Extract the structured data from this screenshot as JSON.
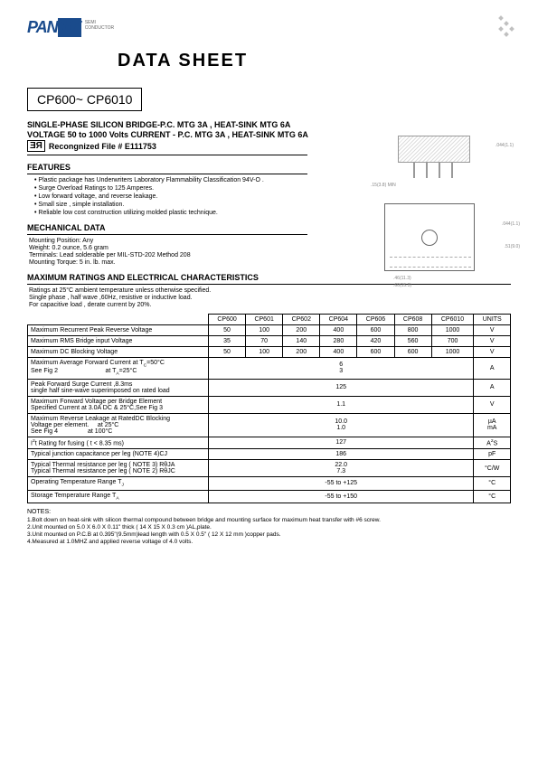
{
  "logo": {
    "brand1": "PAN",
    "brand2": "JiT",
    "sub": "SEMI\nCONDUCTOR"
  },
  "header": {
    "title": "DATA  SHEET",
    "part_range": "CP600~  CP6010"
  },
  "subtitle1": "SINGLE-PHASE SILICON BRIDGE-P.C. MTG 3A , HEAT-SINK MTG  6A",
  "subtitle2": "VOLTAGE  50 to 1000  Volts   CURRENT - P.C. MTG 3A , HEAT-SINK MTG 6A",
  "recognized": "Recongnized File # E111753",
  "features": {
    "title": "FEATURES",
    "items": [
      "Plastic package has Underwriters Laboratory Flammability Classification 94V-O .",
      "Surge Overload Ratings to 125 Amperes.",
      "Low forward voltage, and reverse leakage.",
      "Small size , simple installation.",
      "Reliable low cost construction utilizing molded plastic technique."
    ]
  },
  "mechanical": {
    "title": "MECHANICAL DATA",
    "lines": [
      "Mounting Position: Any",
      "Weight: 0.2 ounce, 5.6 gram",
      "Terminals: Lead solderable per MIL-STD-202 Method 208",
      "Mounting Torque:  5 in. lb. max."
    ]
  },
  "maxratings": {
    "title": "MAXIMUM RATINGS AND ELECTRICAL CHARACTERISTICS",
    "notes": [
      "Ratings at 25°C ambient temperature unless otherwise specified.",
      "Single phase , half wave ,60Hz, resistive or inductive load.",
      "For capacitive load , derate current by 20%."
    ],
    "columns": [
      "CP600",
      "CP601",
      "CP602",
      "CP604",
      "CP606",
      "CP608",
      "CP6010",
      "UNITS"
    ],
    "rows": [
      {
        "label": "Maximum Recurrent Peak Reverse Voltage",
        "cells": [
          "50",
          "100",
          "200",
          "400",
          "600",
          "800",
          "1000",
          "V"
        ]
      },
      {
        "label": "Maximum RMS Bridge input Voltage",
        "cells": [
          "35",
          "70",
          "140",
          "280",
          "420",
          "560",
          "700",
          "V"
        ]
      },
      {
        "label": "Maximum DC Blocking Voltage",
        "cells": [
          "50",
          "100",
          "200",
          "400",
          "600",
          "600",
          "1000",
          "V"
        ]
      },
      {
        "label": "Maximum Average Forward Current  at T<sub>C</sub>=50°C<br>See Fig 2&nbsp;&nbsp;&nbsp;&nbsp;&nbsp;&nbsp;&nbsp;&nbsp;&nbsp;&nbsp;&nbsp;&nbsp;&nbsp;&nbsp;&nbsp;&nbsp;&nbsp;&nbsp;&nbsp;&nbsp;&nbsp;&nbsp;&nbsp;&nbsp;&nbsp;&nbsp;&nbsp;at T<sub>A</sub>=25°C",
        "span": true,
        "val": "6<br>3",
        "unit": "A"
      },
      {
        "label": "Peak Forward Surge Current ,8.3ms<br>single half sine-wave superimposed on rated load",
        "span": true,
        "val": "125",
        "unit": "A"
      },
      {
        "label": "Maximum Forward Voltage  per Bridge Element<br>Specified Current at 3.0A DC & 25°C,See Fig 3",
        "span": true,
        "val": "1.1",
        "unit": "V"
      },
      {
        "label": "Maximum Reverse Leakage at RatedDC Blocking<br>Voltage per element.&nbsp;&nbsp;&nbsp;&nbsp;&nbsp;at  25°C<br>See Fig 4&nbsp;&nbsp;&nbsp;&nbsp;&nbsp;&nbsp;&nbsp;&nbsp;&nbsp;&nbsp;&nbsp;&nbsp;&nbsp;&nbsp;&nbsp;&nbsp;&nbsp;at  100°C",
        "span": true,
        "val": "10.0<br>1.0",
        "unit": "µA<br>mA"
      },
      {
        "label": "I<sup>2</sup>t Rating for fusing  ( t < 8.35 ms)",
        "span": true,
        "val": "127",
        "unit": "A<sup>2</sup>S"
      },
      {
        "label": "Typical junction capacitance per leg (NOTE 4)CJ",
        "span": true,
        "val": "186",
        "unit": "pF"
      },
      {
        "label": "Typical Thermal resistance per leg ( NOTE 3) RθJA<br>Typical Thermal resistance per leg ( NOTE 2) RθJC",
        "span": true,
        "val": "22.0<br>7.3",
        "unit": "°C/W"
      },
      {
        "label": "Operating Temperature Range T<sub>J</sub>",
        "span": true,
        "val": "-55 to +125",
        "unit": "°C"
      },
      {
        "label": "Storage Temperature Range T<sub>A</sub>",
        "span": true,
        "val": "-55 to +150",
        "unit": "°C"
      }
    ]
  },
  "notes": {
    "title": "NOTES:",
    "items": [
      "1.Bolt down on heat-sink with silicon thermal compound between bridge and mounting surface for maximum heat transfer with #6 screw.",
      "2.Unit mounted on 5.0 X 6.0 X 0.11\" thick ( 14 X 15 X 0.3 cm )AL,plate.",
      "3.Unit mounted on P.C.B at 0.395\"(9.5mm)lead length with 0.5 X 0.5\" ( 12 X 12 mm )copper pads.",
      "4.Measured at 1.0MHZ and applied reverse voltage of 4.0 volts."
    ]
  },
  "diagram_dims": {
    "top_h": ".044(1.1)",
    "top_hmin": ".760(0.8) MIN",
    "lead": ".15(3.8) MIN",
    "body_w1": ".46(11.3)",
    "body_w2": ".60(15.3)",
    "body_h1": ".044(1.1)",
    "body_h2": ".51(9.0)",
    "hole": ".01(5.7)"
  },
  "colors": {
    "logo": "#1a4b8c",
    "text": "#000000",
    "border": "#000000",
    "diag": "#999999"
  }
}
